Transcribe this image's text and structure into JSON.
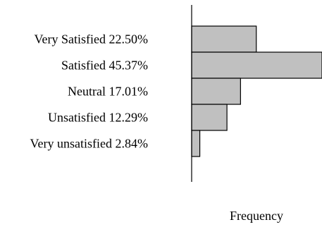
{
  "chart_data": {
    "type": "bar",
    "orientation": "horizontal",
    "categories": [
      "Very Satisfied 22.50%",
      "Satisfied 45.37%",
      "Neutral 17.01%",
      "Unsatisfied 12.29%",
      "Very unsatisfied 2.84%"
    ],
    "values": [
      22.5,
      45.37,
      17.01,
      12.29,
      2.84
    ],
    "title": "",
    "xlabel": "Frequency",
    "ylabel": "",
    "xlim": [
      0,
      45.37
    ],
    "grid": false,
    "legend": "none",
    "bar_color": "#c0c0c0",
    "bar_stroke": "#000000"
  }
}
